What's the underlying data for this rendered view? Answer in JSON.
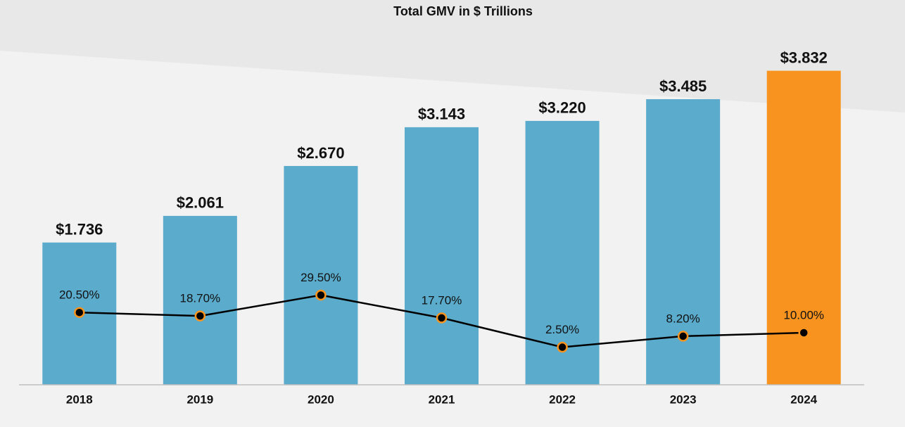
{
  "chart_data": {
    "type": "combo",
    "title": "Total GMV in $ Trillions",
    "categories": [
      "2018",
      "2019",
      "2020",
      "2021",
      "2022",
      "2023",
      "2024"
    ],
    "bars": {
      "values": [
        1.736,
        2.061,
        2.67,
        3.143,
        3.22,
        3.485,
        3.832
      ],
      "value_labels": [
        "$1.736",
        "$2.061",
        "$2.670",
        "$3.143",
        "$3.220",
        "$3.485",
        "$3.832"
      ],
      "colors": [
        "#5aabcc",
        "#5aabcc",
        "#5aabcc",
        "#5aabcc",
        "#5aabcc",
        "#5aabcc",
        "#f7931e"
      ]
    },
    "line": {
      "values": [
        20.5,
        18.7,
        29.5,
        17.7,
        2.5,
        8.2,
        10.0
      ],
      "value_labels": [
        "20.50%",
        "18.70%",
        "29.50%",
        "17.70%",
        "2.50%",
        "8.20%",
        "10.00%"
      ],
      "color": "#000000",
      "marker_color": "#000000",
      "marker_edgecolor": "#f7931e",
      "axis": "y2"
    },
    "ylim": [
      0,
      4
    ],
    "y2lim": [
      -17,
      153
    ]
  }
}
